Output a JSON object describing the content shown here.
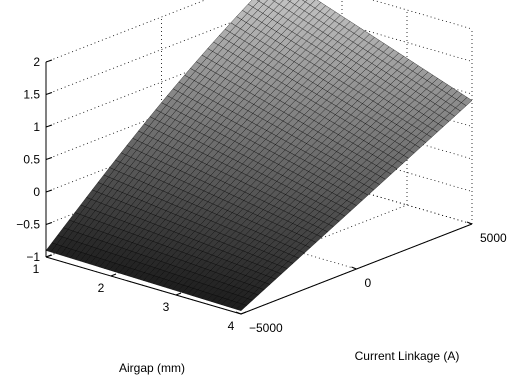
{
  "chart_data": {
    "type": "surface",
    "title": "",
    "xlabel": "Airgap (mm)",
    "ylabel": "Current Linkage (A)",
    "zlabel": "",
    "xlim": [
      1,
      4
    ],
    "ylim": [
      -5000,
      5000
    ],
    "zlim": [
      -1,
      2
    ],
    "x_ticks": [
      1,
      2,
      3,
      4
    ],
    "y_ticks": [
      -5000,
      0,
      5000
    ],
    "z_ticks": [
      -1,
      -0.5,
      0,
      0.5,
      1,
      1.5,
      2
    ],
    "x_tick_labels": [
      "1",
      "2",
      "3",
      "4"
    ],
    "y_tick_labels": [
      "−5000",
      "0",
      "5000"
    ],
    "z_tick_labels": [
      "−1",
      "−0.5",
      "0",
      "0.5",
      "1",
      "1.5",
      "2"
    ],
    "grid": true,
    "colormap": "gray",
    "mesh": {
      "x_count": 40,
      "y_count": 40
    },
    "corner_values": [
      {
        "x": 1,
        "y": -5000,
        "z": -0.9
      },
      {
        "x": 4,
        "y": -5000,
        "z": -0.95
      },
      {
        "x": 4,
        "y": 5000,
        "z": 0.9
      },
      {
        "x": 1,
        "y": 5000,
        "z": 2.15
      }
    ],
    "surface_model": {
      "description_free": true,
      "peak_x": 1,
      "peak_y": 5000,
      "peak_z": 2.15
    }
  }
}
